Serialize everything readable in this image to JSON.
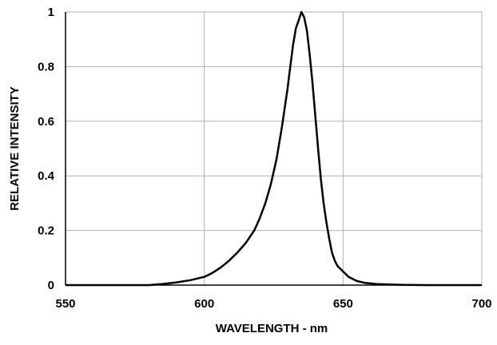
{
  "chart_data": {
    "type": "line",
    "title": "",
    "xlabel": "WAVELENGTH - nm",
    "ylabel": "RELATIVE INTENSITY",
    "xlim": [
      550,
      700
    ],
    "ylim": [
      0,
      1
    ],
    "x_ticks": [
      550,
      600,
      650,
      700
    ],
    "y_ticks": [
      0,
      0.2,
      0.4,
      0.6,
      0.8,
      1
    ],
    "x_tick_labels": [
      "550",
      "600",
      "650",
      "700"
    ],
    "y_tick_labels": [
      "0",
      "0.2",
      "0.4",
      "0.6",
      "0.8",
      "1"
    ],
    "grid": true,
    "legend": "none",
    "line_color": "#000000",
    "grid_color": "#b0b0b0",
    "series": [
      {
        "x": [
          550,
          580,
          585,
          590,
          595,
          600,
          603,
          606,
          609,
          612,
          615,
          618,
          620,
          622,
          624,
          626,
          628,
          630,
          631,
          632,
          633,
          634,
          635,
          636,
          637,
          638,
          639,
          640,
          641,
          642,
          643,
          644,
          645,
          646,
          647,
          648,
          650,
          652,
          655,
          658,
          662,
          667,
          672,
          680,
          700
        ],
        "y": [
          0,
          0,
          0.004,
          0.01,
          0.018,
          0.03,
          0.045,
          0.065,
          0.09,
          0.12,
          0.155,
          0.2,
          0.245,
          0.3,
          0.37,
          0.46,
          0.58,
          0.72,
          0.8,
          0.88,
          0.94,
          0.97,
          1.0,
          0.98,
          0.93,
          0.84,
          0.74,
          0.62,
          0.5,
          0.39,
          0.3,
          0.23,
          0.17,
          0.12,
          0.09,
          0.07,
          0.05,
          0.03,
          0.015,
          0.008,
          0.004,
          0.002,
          0.001,
          0,
          0
        ]
      }
    ]
  }
}
